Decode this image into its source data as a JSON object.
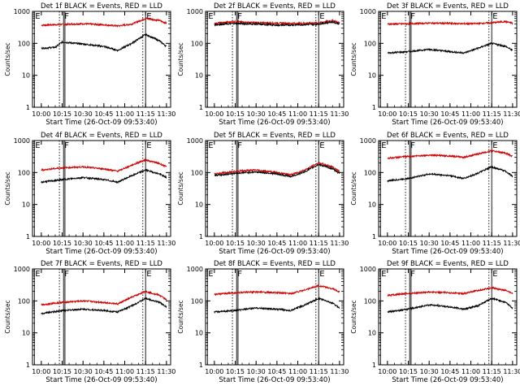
{
  "chart_data": [
    {
      "type": "line",
      "title": "Det 1f BLACK = Events, RED = LLD",
      "xlabel": "Start Time (26-Oct-09 09:53:40)",
      "ylabel": "Counts/sec",
      "yscale": "log",
      "ylim": [
        1,
        1000
      ],
      "xlim": [
        "09:53:40",
        "11:33:00"
      ],
      "x_ticks": [
        "10:00",
        "10:15",
        "10:30",
        "10:45",
        "11:00",
        "11:15",
        "11:30"
      ],
      "y_ticks": [
        "1",
        "10",
        "100",
        "1000"
      ],
      "markers": [
        {
          "time": "09:55",
          "label": "E",
          "style": "solid"
        },
        {
          "time": "10:13",
          "label": "",
          "style": "dotted"
        },
        {
          "time": "10:16",
          "label": "F",
          "style": "solid"
        },
        {
          "time": "10:17",
          "label": "",
          "style": "solid"
        },
        {
          "time": "11:13",
          "label": "",
          "style": "dotted"
        },
        {
          "time": "11:15",
          "label": "E",
          "style": "solid"
        }
      ],
      "series": [
        {
          "color": "#cc0000",
          "x": [
            "10:00",
            "10:15",
            "10:30",
            "10:45",
            "10:55",
            "11:05",
            "11:15",
            "11:25",
            "11:30"
          ],
          "y": [
            370,
            390,
            410,
            380,
            350,
            400,
            600,
            520,
            420
          ]
        },
        {
          "color": "#000000",
          "x": [
            "10:00",
            "10:10",
            "10:15",
            "10:30",
            "10:45",
            "10:55",
            "11:05",
            "11:15",
            "11:25",
            "11:30"
          ],
          "y": [
            70,
            75,
            110,
            95,
            80,
            60,
            100,
            190,
            120,
            80
          ]
        }
      ]
    },
    {
      "type": "line",
      "title": "Det 2f BLACK = Events, RED = LLD",
      "xlabel": "Start Time (26-Oct-09 09:53:40)",
      "ylabel": "Counts/sec",
      "yscale": "log",
      "ylim": [
        1,
        1000
      ],
      "xlim": [
        "09:53:40",
        "11:33:00"
      ],
      "x_ticks": [
        "10:00",
        "10:15",
        "10:30",
        "10:45",
        "11:00",
        "11:15",
        "11:30"
      ],
      "y_ticks": [
        "1",
        "10",
        "100",
        "1000"
      ],
      "markers": [
        {
          "time": "09:55",
          "label": "E",
          "style": "solid"
        },
        {
          "time": "10:13",
          "label": "",
          "style": "dotted"
        },
        {
          "time": "10:16",
          "label": "F",
          "style": "solid"
        },
        {
          "time": "10:17",
          "label": "",
          "style": "solid"
        },
        {
          "time": "11:13",
          "label": "",
          "style": "dotted"
        },
        {
          "time": "11:15",
          "label": "E",
          "style": "solid"
        }
      ],
      "series": [
        {
          "color": "#cc0000",
          "x": [
            "10:00",
            "10:15",
            "10:30",
            "10:45",
            "11:00",
            "11:15",
            "11:25",
            "11:30"
          ],
          "y": [
            420,
            480,
            440,
            430,
            420,
            440,
            520,
            440
          ]
        },
        {
          "color": "#000000",
          "x": [
            "10:00",
            "10:15",
            "10:30",
            "10:45",
            "11:00",
            "11:15",
            "11:25",
            "11:30"
          ],
          "y": [
            380,
            420,
            400,
            370,
            380,
            400,
            470,
            400
          ]
        }
      ]
    },
    {
      "type": "line",
      "title": "Det 3f BLACK = Events, RED = LLD",
      "xlabel": "Start Time (26-Oct-09 09:53:40)",
      "ylabel": "Counts/sec",
      "yscale": "log",
      "ylim": [
        1,
        1000
      ],
      "xlim": [
        "09:53:40",
        "11:33:00"
      ],
      "x_ticks": [
        "10:00",
        "10:15",
        "10:30",
        "10:45",
        "11:00",
        "11:15",
        "11:30"
      ],
      "y_ticks": [
        "1",
        "10",
        "100",
        "1000"
      ],
      "markers": [
        {
          "time": "09:55",
          "label": "E",
          "style": "solid"
        },
        {
          "time": "10:13",
          "label": "",
          "style": "dotted"
        },
        {
          "time": "10:16",
          "label": "F",
          "style": "solid"
        },
        {
          "time": "10:17",
          "label": "",
          "style": "solid"
        },
        {
          "time": "11:13",
          "label": "",
          "style": "dotted"
        },
        {
          "time": "11:15",
          "label": "E",
          "style": "solid"
        }
      ],
      "series": [
        {
          "color": "#cc0000",
          "x": [
            "10:00",
            "10:15",
            "10:30",
            "10:45",
            "11:00",
            "11:15",
            "11:25",
            "11:30"
          ],
          "y": [
            400,
            410,
            430,
            420,
            410,
            440,
            480,
            420
          ]
        },
        {
          "color": "#000000",
          "x": [
            "10:00",
            "10:15",
            "10:30",
            "10:45",
            "10:55",
            "11:05",
            "11:15",
            "11:25",
            "11:30"
          ],
          "y": [
            50,
            55,
            65,
            55,
            50,
            70,
            100,
            80,
            60
          ]
        }
      ]
    },
    {
      "type": "line",
      "title": "Det 4f BLACK = Events, RED = LLD",
      "xlabel": "Start Time (26-Oct-09 09:53:40)",
      "ylabel": "Counts/sec",
      "yscale": "log",
      "ylim": [
        1,
        1000
      ],
      "xlim": [
        "09:53:40",
        "11:33:00"
      ],
      "x_ticks": [
        "10:00",
        "10:15",
        "10:30",
        "10:45",
        "11:00",
        "11:15",
        "11:30"
      ],
      "y_ticks": [
        "1",
        "10",
        "100",
        "1000"
      ],
      "markers": [
        {
          "time": "09:55",
          "label": "E",
          "style": "solid"
        },
        {
          "time": "10:13",
          "label": "",
          "style": "dotted"
        },
        {
          "time": "10:16",
          "label": "F",
          "style": "solid"
        },
        {
          "time": "10:17",
          "label": "",
          "style": "solid"
        },
        {
          "time": "11:13",
          "label": "",
          "style": "dotted"
        },
        {
          "time": "11:15",
          "label": "E",
          "style": "solid"
        }
      ],
      "series": [
        {
          "color": "#cc0000",
          "x": [
            "10:00",
            "10:15",
            "10:30",
            "10:45",
            "10:55",
            "11:05",
            "11:15",
            "11:25",
            "11:30"
          ],
          "y": [
            120,
            140,
            150,
            130,
            110,
            170,
            250,
            190,
            150
          ]
        },
        {
          "color": "#000000",
          "x": [
            "10:00",
            "10:15",
            "10:30",
            "10:45",
            "10:55",
            "11:05",
            "11:15",
            "11:25",
            "11:30"
          ],
          "y": [
            50,
            60,
            70,
            60,
            50,
            80,
            120,
            90,
            70
          ]
        }
      ]
    },
    {
      "type": "line",
      "title": "Det 5f BLACK = Events, RED = LLD",
      "xlabel": "Start Time (26-Oct-09 09:53:40)",
      "ylabel": "Counts/sec",
      "yscale": "log",
      "ylim": [
        1,
        1000
      ],
      "xlim": [
        "09:53:40",
        "11:33:00"
      ],
      "x_ticks": [
        "10:00",
        "10:15",
        "10:30",
        "10:45",
        "11:00",
        "11:15",
        "11:30"
      ],
      "y_ticks": [
        "1",
        "10",
        "100",
        "1000"
      ],
      "markers": [
        {
          "time": "09:55",
          "label": "E",
          "style": "solid"
        },
        {
          "time": "10:13",
          "label": "",
          "style": "dotted"
        },
        {
          "time": "10:16",
          "label": "F",
          "style": "solid"
        },
        {
          "time": "10:17",
          "label": "",
          "style": "solid"
        },
        {
          "time": "11:13",
          "label": "",
          "style": "dotted"
        },
        {
          "time": "11:15",
          "label": "E",
          "style": "solid"
        }
      ],
      "series": [
        {
          "color": "#cc0000",
          "x": [
            "10:00",
            "10:15",
            "10:30",
            "10:45",
            "10:55",
            "11:05",
            "11:15",
            "11:25",
            "11:30"
          ],
          "y": [
            90,
            110,
            120,
            100,
            85,
            120,
            200,
            150,
            110
          ]
        },
        {
          "color": "#000000",
          "x": [
            "10:00",
            "10:15",
            "10:30",
            "10:45",
            "10:55",
            "11:05",
            "11:15",
            "11:25",
            "11:30"
          ],
          "y": [
            80,
            95,
            105,
            90,
            75,
            105,
            180,
            130,
            95
          ]
        }
      ]
    },
    {
      "type": "line",
      "title": "Det 6f BLACK = Events, RED = LLD",
      "xlabel": "Start Time (26-Oct-09 09:53:40)",
      "ylabel": "Counts/sec",
      "yscale": "log",
      "ylim": [
        1,
        1000
      ],
      "xlim": [
        "09:53:40",
        "11:33:00"
      ],
      "x_ticks": [
        "10:00",
        "10:15",
        "10:30",
        "10:45",
        "11:00",
        "11:15",
        "11:30"
      ],
      "y_ticks": [
        "1",
        "10",
        "100",
        "1000"
      ],
      "markers": [
        {
          "time": "09:55",
          "label": "E",
          "style": "solid"
        },
        {
          "time": "10:13",
          "label": "",
          "style": "dotted"
        },
        {
          "time": "10:16",
          "label": "F",
          "style": "solid"
        },
        {
          "time": "10:17",
          "label": "",
          "style": "solid"
        },
        {
          "time": "11:13",
          "label": "",
          "style": "dotted"
        },
        {
          "time": "11:15",
          "label": "E",
          "style": "solid"
        }
      ],
      "series": [
        {
          "color": "#cc0000",
          "x": [
            "10:00",
            "10:15",
            "10:30",
            "10:45",
            "10:55",
            "11:05",
            "11:15",
            "11:25",
            "11:30"
          ],
          "y": [
            280,
            320,
            350,
            330,
            300,
            380,
            480,
            400,
            320
          ]
        },
        {
          "color": "#000000",
          "x": [
            "10:00",
            "10:15",
            "10:30",
            "10:45",
            "10:55",
            "11:05",
            "11:15",
            "11:25",
            "11:30"
          ],
          "y": [
            55,
            65,
            90,
            80,
            65,
            95,
            150,
            110,
            75
          ]
        }
      ]
    },
    {
      "type": "line",
      "title": "Det 7f BLACK = Events, RED = LLD",
      "xlabel": "Start Time (26-Oct-09 09:53:40)",
      "ylabel": "Counts/sec",
      "yscale": "log",
      "ylim": [
        1,
        1000
      ],
      "xlim": [
        "09:53:40",
        "11:33:00"
      ],
      "x_ticks": [
        "10:00",
        "10:15",
        "10:30",
        "10:45",
        "11:00",
        "11:15",
        "11:30"
      ],
      "y_ticks": [
        "1",
        "10",
        "100",
        "1000"
      ],
      "markers": [
        {
          "time": "09:55",
          "label": "E",
          "style": "solid"
        },
        {
          "time": "10:13",
          "label": "",
          "style": "dotted"
        },
        {
          "time": "10:16",
          "label": "F",
          "style": "solid"
        },
        {
          "time": "10:17",
          "label": "",
          "style": "solid"
        },
        {
          "time": "11:13",
          "label": "",
          "style": "dotted"
        },
        {
          "time": "11:15",
          "label": "E",
          "style": "solid"
        }
      ],
      "series": [
        {
          "color": "#cc0000",
          "x": [
            "10:00",
            "10:15",
            "10:30",
            "10:45",
            "10:55",
            "11:05",
            "11:15",
            "11:25",
            "11:30"
          ],
          "y": [
            75,
            90,
            100,
            90,
            80,
            130,
            200,
            150,
            110
          ]
        },
        {
          "color": "#000000",
          "x": [
            "10:00",
            "10:15",
            "10:30",
            "10:45",
            "10:55",
            "11:05",
            "11:15",
            "11:25",
            "11:30"
          ],
          "y": [
            40,
            50,
            55,
            50,
            45,
            70,
            120,
            90,
            65
          ]
        }
      ]
    },
    {
      "type": "line",
      "title": "Det 8f BLACK = Events, RED = LLD",
      "xlabel": "Start Time (26-Oct-09 09:53:40)",
      "ylabel": "Counts/sec",
      "yscale": "log",
      "ylim": [
        1,
        1000
      ],
      "xlim": [
        "09:53:40",
        "11:33:00"
      ],
      "x_ticks": [
        "10:00",
        "10:15",
        "10:30",
        "10:45",
        "11:00",
        "11:15",
        "11:30"
      ],
      "y_ticks": [
        "1",
        "10",
        "100",
        "1000"
      ],
      "markers": [
        {
          "time": "09:55",
          "label": "E",
          "style": "solid"
        },
        {
          "time": "10:13",
          "label": "",
          "style": "dotted"
        },
        {
          "time": "10:16",
          "label": "F",
          "style": "solid"
        },
        {
          "time": "10:17",
          "label": "",
          "style": "solid"
        },
        {
          "time": "11:13",
          "label": "",
          "style": "dotted"
        },
        {
          "time": "11:15",
          "label": "E",
          "style": "solid"
        }
      ],
      "series": [
        {
          "color": "#cc0000",
          "x": [
            "10:00",
            "10:15",
            "10:30",
            "10:45",
            "10:55",
            "11:05",
            "11:15",
            "11:25",
            "11:30"
          ],
          "y": [
            160,
            180,
            190,
            180,
            170,
            220,
            300,
            240,
            190
          ]
        },
        {
          "color": "#000000",
          "x": [
            "10:00",
            "10:15",
            "10:30",
            "10:45",
            "10:55",
            "11:05",
            "11:15",
            "11:25",
            "11:30"
          ],
          "y": [
            45,
            50,
            60,
            55,
            50,
            75,
            120,
            85,
            60
          ]
        }
      ]
    },
    {
      "type": "line",
      "title": "Det 9f BLACK = Events, RED = LLD",
      "xlabel": "Start Time (26-Oct-09 09:53:40)",
      "ylabel": "Counts/sec",
      "yscale": "log",
      "ylim": [
        1,
        1000
      ],
      "xlim": [
        "09:53:40",
        "11:33:00"
      ],
      "x_ticks": [
        "10:00",
        "10:15",
        "10:30",
        "10:45",
        "11:00",
        "11:15",
        "11:30"
      ],
      "y_ticks": [
        "1",
        "10",
        "100",
        "1000"
      ],
      "markers": [
        {
          "time": "09:55",
          "label": "E",
          "style": "solid"
        },
        {
          "time": "10:13",
          "label": "",
          "style": "dotted"
        },
        {
          "time": "10:16",
          "label": "F",
          "style": "solid"
        },
        {
          "time": "10:17",
          "label": "",
          "style": "solid"
        },
        {
          "time": "11:13",
          "label": "",
          "style": "dotted"
        },
        {
          "time": "11:15",
          "label": "E",
          "style": "solid"
        }
      ],
      "series": [
        {
          "color": "#cc0000",
          "x": [
            "10:00",
            "10:15",
            "10:30",
            "10:45",
            "10:55",
            "11:05",
            "11:15",
            "11:25",
            "11:30"
          ],
          "y": [
            150,
            170,
            190,
            180,
            170,
            210,
            260,
            210,
            170
          ]
        },
        {
          "color": "#000000",
          "x": [
            "10:00",
            "10:15",
            "10:30",
            "10:45",
            "10:55",
            "11:05",
            "11:15",
            "11:25",
            "11:30"
          ],
          "y": [
            45,
            55,
            75,
            65,
            55,
            70,
            120,
            90,
            60
          ]
        }
      ]
    }
  ]
}
